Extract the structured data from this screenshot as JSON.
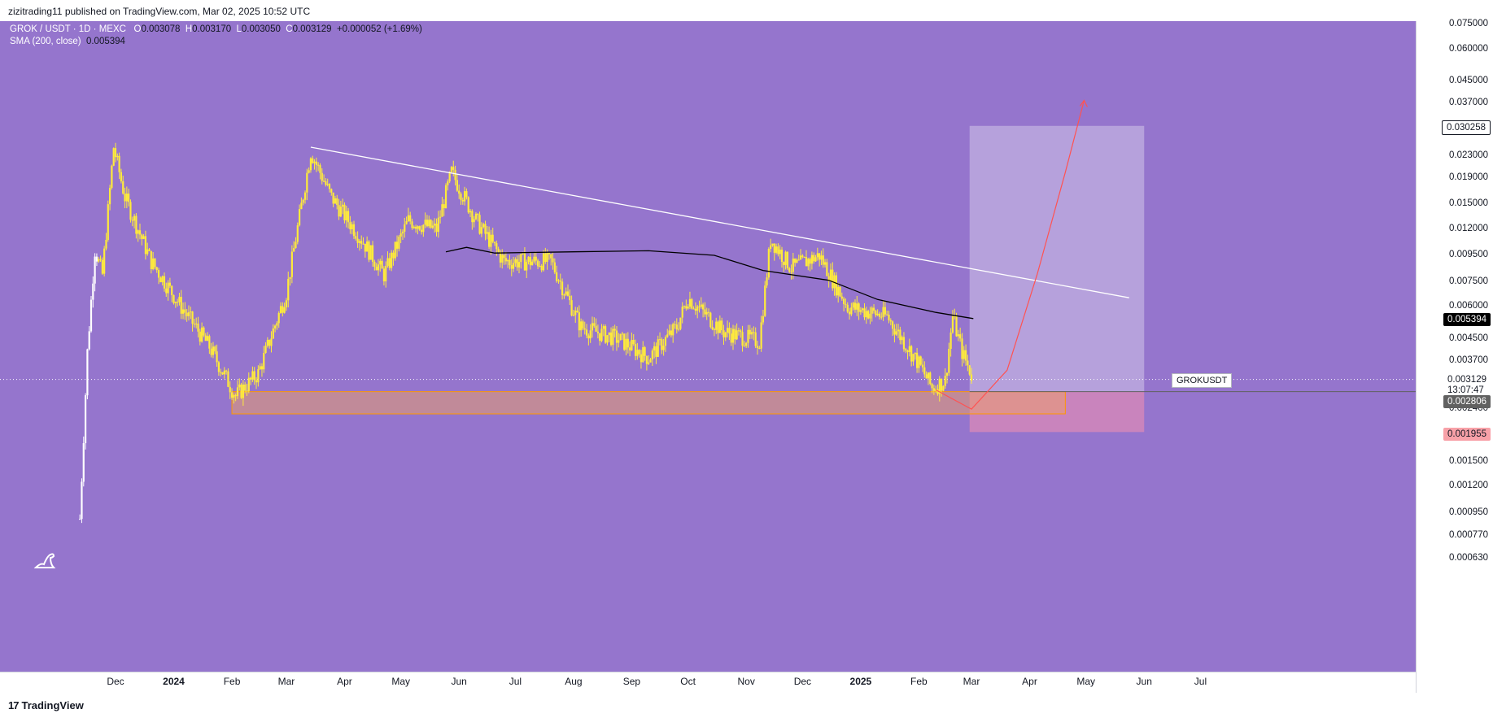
{
  "header": {
    "publisher": "zizitrading11 published on TradingView.com, Mar 02, 2025 10:52 UTC"
  },
  "legend": {
    "symbol_line": "GROK / USDT · 1D · MEXC",
    "open_label": "O",
    "open_value": "0.003078",
    "high_label": "H",
    "high_value": "0.003170",
    "low_label": "L",
    "low_value": "0.003050",
    "close_label": "C",
    "close_value": "0.003129",
    "change": "+0.000052 (+1.69%)",
    "sma_label": "SMA (200, close)",
    "sma_value": "0.005394"
  },
  "price_axis": {
    "ticks": [
      "0.075000",
      "0.060000",
      "0.045000",
      "0.037000",
      "0.030258",
      "0.023000",
      "0.019000",
      "0.015000",
      "0.012000",
      "0.009500",
      "0.007500",
      "0.006000",
      "0.005394",
      "0.004500",
      "0.003700",
      "0.003129",
      "0.002806",
      "0.002400",
      "0.001955",
      "0.001500",
      "0.001200",
      "0.000950",
      "0.000770",
      "0.000630"
    ],
    "target_label": "0.030258",
    "sma_label": "0.005394",
    "current_label": "0.003129",
    "countdown": "13:07:47",
    "support_label": "0.002806",
    "stop_label": "0.001955",
    "ticker_tag": "GROKUSDT"
  },
  "time_axis": {
    "labels": [
      "Dec",
      "2024",
      "Feb",
      "Mar",
      "Apr",
      "May",
      "Jun",
      "Jul",
      "Aug",
      "Sep",
      "Oct",
      "Nov",
      "Dec",
      "2025",
      "Feb",
      "Mar",
      "Apr",
      "May",
      "Jun",
      "Jul"
    ],
    "bold": [
      "2024",
      "2025"
    ]
  },
  "footer": {
    "brand": "TradingView",
    "brand_mark": "17"
  },
  "colors": {
    "background": "#9575cd",
    "candle": "#ffeb3b",
    "candle_early": "#ffffff",
    "sma": "#000000",
    "trendline": "#ffffff",
    "support_zone": "#f7a35c",
    "target_zone": "#d1c4e9",
    "stop_zone": "#f48fb1",
    "projection": "#ff5252",
    "sma_badge": "#000000",
    "support_badge": "#616161",
    "stop_badge": "#f8a1a8"
  },
  "chart_data": {
    "type": "candlestick",
    "scale": "log",
    "symbol": "GROK / USDT",
    "timeframe": "1D",
    "exchange": "MEXC",
    "ylim": [
      0.00063,
      0.075
    ],
    "key_levels": {
      "target": 0.030258,
      "sma200": 0.005394,
      "current": 0.003129,
      "support_top": 0.002806,
      "stop": 0.001955
    },
    "close_path": [
      {
        "x": "2023-11-12",
        "y": 0.0009
      },
      {
        "x": "2023-11-16",
        "y": 0.004
      },
      {
        "x": "2023-11-20",
        "y": 0.01
      },
      {
        "x": "2023-11-24",
        "y": 0.008
      },
      {
        "x": "2023-11-30",
        "y": 0.025
      },
      {
        "x": "2023-12-06",
        "y": 0.016
      },
      {
        "x": "2023-12-20",
        "y": 0.009
      },
      {
        "x": "2024-01-05",
        "y": 0.006
      },
      {
        "x": "2024-01-20",
        "y": 0.0042
      },
      {
        "x": "2024-02-03",
        "y": 0.0027
      },
      {
        "x": "2024-02-15",
        "y": 0.0033
      },
      {
        "x": "2024-03-01",
        "y": 0.0068
      },
      {
        "x": "2024-03-14",
        "y": 0.024
      },
      {
        "x": "2024-03-25",
        "y": 0.016
      },
      {
        "x": "2024-04-10",
        "y": 0.011
      },
      {
        "x": "2024-04-22",
        "y": 0.008
      },
      {
        "x": "2024-05-05",
        "y": 0.013
      },
      {
        "x": "2024-05-20",
        "y": 0.012
      },
      {
        "x": "2024-05-28",
        "y": 0.02
      },
      {
        "x": "2024-06-10",
        "y": 0.013
      },
      {
        "x": "2024-06-25",
        "y": 0.009
      },
      {
        "x": "2024-07-20",
        "y": 0.009
      },
      {
        "x": "2024-08-05",
        "y": 0.005
      },
      {
        "x": "2024-08-25",
        "y": 0.0045
      },
      {
        "x": "2024-09-10",
        "y": 0.0038
      },
      {
        "x": "2024-09-25",
        "y": 0.005
      },
      {
        "x": "2024-10-01",
        "y": 0.0065
      },
      {
        "x": "2024-10-20",
        "y": 0.0048
      },
      {
        "x": "2024-11-08",
        "y": 0.0044
      },
      {
        "x": "2024-11-14",
        "y": 0.011
      },
      {
        "x": "2024-11-25",
        "y": 0.0085
      },
      {
        "x": "2024-12-10",
        "y": 0.0095
      },
      {
        "x": "2024-12-25",
        "y": 0.006
      },
      {
        "x": "2025-01-15",
        "y": 0.0055
      },
      {
        "x": "2025-02-01",
        "y": 0.0036
      },
      {
        "x": "2025-02-08",
        "y": 0.0029
      },
      {
        "x": "2025-02-15",
        "y": 0.0031
      },
      {
        "x": "2025-02-19",
        "y": 0.0055
      },
      {
        "x": "2025-02-24",
        "y": 0.004
      },
      {
        "x": "2025-03-02",
        "y": 0.003129
      }
    ],
    "sma200": [
      {
        "x": "2024-05-25",
        "y": 0.0098
      },
      {
        "x": "2024-06-05",
        "y": 0.0102
      },
      {
        "x": "2024-06-20",
        "y": 0.0097
      },
      {
        "x": "2024-08-01",
        "y": 0.0098
      },
      {
        "x": "2024-09-10",
        "y": 0.0099
      },
      {
        "x": "2024-10-15",
        "y": 0.0095
      },
      {
        "x": "2024-11-10",
        "y": 0.0083
      },
      {
        "x": "2024-12-15",
        "y": 0.0076
      },
      {
        "x": "2025-01-10",
        "y": 0.0064
      },
      {
        "x": "2025-02-10",
        "y": 0.0057
      },
      {
        "x": "2025-03-02",
        "y": 0.005394
      }
    ],
    "trendline": [
      {
        "x": "2024-03-14",
        "y": 0.025
      },
      {
        "x": "2025-05-24",
        "y": 0.0065
      }
    ],
    "support_zone": {
      "x0": "2024-02-01",
      "x1": "2025-04-20",
      "y0": 0.0023,
      "y1": 0.002806
    },
    "long_position": {
      "x0": "2025-02-28",
      "x1": "2025-06-01",
      "entry": 0.002806,
      "target": 0.030258,
      "stop": 0.001955
    },
    "projection": [
      {
        "x": "2025-02-10",
        "y": 0.00285
      },
      {
        "x": "2025-03-01",
        "y": 0.0024
      },
      {
        "x": "2025-03-20",
        "y": 0.0034
      },
      {
        "x": "2025-04-05",
        "y": 0.008
      },
      {
        "x": "2025-04-20",
        "y": 0.02
      },
      {
        "x": "2025-04-30",
        "y": 0.038
      }
    ]
  }
}
